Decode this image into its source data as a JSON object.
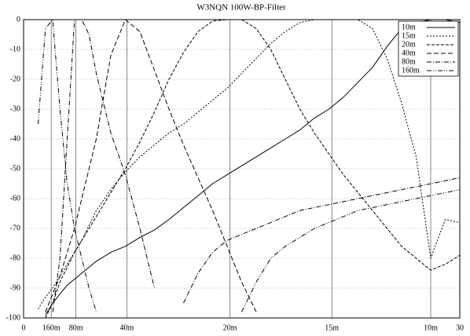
{
  "chart_data": {
    "type": "line",
    "title": "W3NQN 100W-BP-Filter",
    "x": [
      1,
      1.5,
      2,
      2.5,
      3,
      3.5,
      4,
      4.5,
      5,
      6,
      7,
      8,
      9,
      10,
      11,
      12,
      13,
      14,
      15,
      16,
      17,
      18,
      19,
      20,
      21,
      22,
      23,
      24,
      25,
      26,
      27,
      28,
      29,
      30
    ],
    "series": [
      {
        "name": "10m",
        "color": "#000000",
        "values": [
          null,
          -99,
          -95,
          -92,
          -89,
          -87,
          -85,
          -83,
          -81,
          -78,
          -76,
          -73,
          -70.5,
          -67,
          -63,
          -59,
          -55,
          -52,
          -49,
          -46,
          -43,
          -40,
          -37,
          -33,
          -30,
          -26,
          -21,
          -16,
          -9,
          -3,
          -1,
          0,
          0,
          -1
        ]
      },
      {
        "name": "15m",
        "color": "#000000",
        "dash": "2 2",
        "values": [
          -97,
          -93,
          -90,
          -86,
          -82,
          -78,
          -74,
          -69,
          -64,
          -57,
          -51,
          -46,
          -42,
          -38,
          -35,
          -31,
          -27,
          -23,
          -18,
          -13,
          -8,
          -4,
          -1,
          0,
          0,
          0,
          0,
          -3,
          -13,
          -28,
          -46,
          -80,
          -67,
          -68
        ]
      },
      {
        "name": "20m",
        "color": "#000000",
        "dash": "4 2",
        "values": [
          null,
          -100,
          -95,
          -88,
          -83,
          -78,
          -74,
          -70,
          -66,
          -58,
          -50,
          -41,
          -31,
          -20,
          -11,
          -4,
          -0.5,
          0,
          0,
          -3,
          -10,
          -20,
          -30,
          -38,
          -45,
          -52,
          -58,
          -64,
          -70,
          -76,
          -80,
          -84,
          -82,
          -79
        ]
      },
      {
        "name": "40m",
        "color": "#000000",
        "dash": "6 3",
        "values": [
          null,
          -98,
          -92,
          -86,
          -78,
          -70,
          -60,
          -50,
          -40,
          -12,
          0,
          -4,
          -17,
          -30,
          -42,
          -53,
          -64,
          -76,
          -88,
          -98,
          null,
          null,
          null,
          null,
          null,
          null,
          null,
          null,
          null,
          null,
          null,
          null,
          null,
          null
        ]
      },
      {
        "name": "80m",
        "color": "#000000",
        "dash": "6 2 1 2",
        "values": [
          null,
          null,
          -98,
          -80,
          -40,
          0,
          0,
          -5,
          -18,
          -38,
          -52,
          -70,
          -90,
          null,
          -95,
          -85,
          -78,
          -74,
          -72,
          -70,
          -68,
          -66,
          -64,
          -63,
          -62,
          -61,
          -60,
          -59,
          -58,
          -57,
          -56,
          -55,
          -54,
          -53
        ]
      },
      {
        "name": "160m",
        "color": "#000000",
        "dash": "6 2 1 2 1 2",
        "values": [
          -35,
          -3,
          0,
          -30,
          -55,
          -70,
          -80,
          -90,
          -98,
          null,
          null,
          null,
          null,
          null,
          null,
          null,
          null,
          null,
          -98,
          -88,
          -80,
          -76,
          -73,
          -70,
          -68,
          -66,
          -64,
          -63,
          -62,
          -61,
          -60,
          -59,
          -58,
          -57
        ]
      }
    ],
    "xlim": [
      0,
      30
    ],
    "xticks": [
      0,
      {
        "value": 1.9,
        "label": "160m"
      },
      {
        "value": 3.6,
        "label": "80m"
      },
      {
        "value": 7.1,
        "label": "40m"
      },
      {
        "value": 14.2,
        "label": "20m"
      },
      {
        "value": 21.2,
        "label": "15m"
      },
      {
        "value": 28.0,
        "label": "10m"
      },
      30
    ],
    "ylim": [
      -100,
      0
    ],
    "yticks": [
      0,
      -10,
      -20,
      -30,
      -40,
      -50,
      -60,
      -70,
      -80,
      -90,
      -100
    ],
    "grid": true,
    "legend": "top-right"
  }
}
